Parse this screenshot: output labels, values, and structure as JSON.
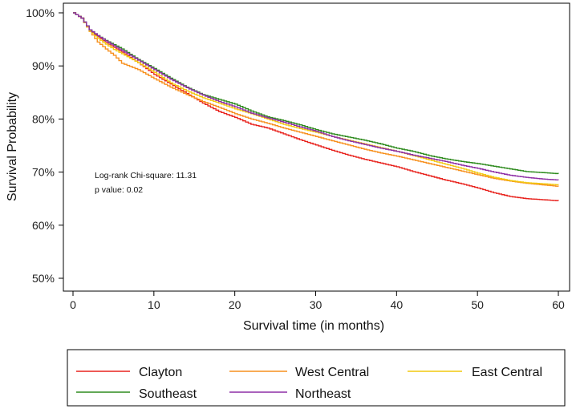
{
  "chart_data": {
    "type": "line",
    "step": true,
    "title": "",
    "xlabel": "Survival time (in months)",
    "ylabel": "Survival Probability",
    "xlim": [
      0,
      60
    ],
    "ylim": [
      0.5,
      1.0
    ],
    "xticks": [
      0,
      10,
      20,
      30,
      40,
      50,
      60
    ],
    "xtick_labels": [
      "0",
      "10",
      "20",
      "30",
      "40",
      "50",
      "60"
    ],
    "yticks": [
      0.5,
      0.6,
      0.7,
      0.8,
      0.9,
      1.0
    ],
    "ytick_labels": [
      "50%",
      "60%",
      "70%",
      "80%",
      "90%",
      "100%"
    ],
    "grid": false,
    "legend_position": "bottom",
    "annotations": [
      "Log-rank Chi-square: 11.31",
      "p value: 0.02"
    ],
    "x": [
      0,
      1,
      2,
      3,
      4,
      5,
      6,
      8,
      10,
      12,
      14,
      16,
      18,
      20,
      22,
      24,
      26,
      28,
      30,
      32,
      34,
      36,
      38,
      40,
      42,
      44,
      46,
      48,
      50,
      52,
      54,
      56,
      58,
      60
    ],
    "series": [
      {
        "name": "Clayton",
        "color": "#e8231e",
        "values": [
          1.0,
          0.99,
          0.966,
          0.955,
          0.944,
          0.935,
          0.926,
          0.906,
          0.884,
          0.866,
          0.848,
          0.83,
          0.814,
          0.803,
          0.79,
          0.783,
          0.772,
          0.761,
          0.751,
          0.741,
          0.732,
          0.724,
          0.717,
          0.71,
          0.701,
          0.693,
          0.685,
          0.678,
          0.67,
          0.661,
          0.654,
          0.65,
          0.648,
          0.646
        ]
      },
      {
        "name": "West Central",
        "color": "#f7901e",
        "values": [
          1.0,
          0.99,
          0.965,
          0.945,
          0.932,
          0.92,
          0.905,
          0.893,
          0.876,
          0.86,
          0.846,
          0.833,
          0.822,
          0.81,
          0.8,
          0.792,
          0.783,
          0.775,
          0.767,
          0.759,
          0.751,
          0.743,
          0.736,
          0.73,
          0.723,
          0.716,
          0.709,
          0.702,
          0.695,
          0.688,
          0.683,
          0.679,
          0.676,
          0.673
        ]
      },
      {
        "name": "East Central",
        "color": "#f2c80f",
        "values": [
          1.0,
          0.99,
          0.966,
          0.952,
          0.941,
          0.931,
          0.923,
          0.906,
          0.888,
          0.868,
          0.853,
          0.84,
          0.83,
          0.819,
          0.81,
          0.8,
          0.79,
          0.782,
          0.775,
          0.767,
          0.76,
          0.753,
          0.746,
          0.739,
          0.731,
          0.723,
          0.715,
          0.707,
          0.698,
          0.69,
          0.684,
          0.68,
          0.678,
          0.676
        ]
      },
      {
        "name": "Southeast",
        "color": "#2e8b1e",
        "values": [
          1.0,
          0.99,
          0.968,
          0.957,
          0.948,
          0.94,
          0.932,
          0.912,
          0.895,
          0.877,
          0.86,
          0.846,
          0.837,
          0.828,
          0.815,
          0.804,
          0.797,
          0.789,
          0.78,
          0.772,
          0.766,
          0.76,
          0.753,
          0.745,
          0.739,
          0.731,
          0.725,
          0.72,
          0.716,
          0.711,
          0.706,
          0.701,
          0.699,
          0.697
        ]
      },
      {
        "name": "Northeast",
        "color": "#8e2fa5",
        "values": [
          1.0,
          0.99,
          0.968,
          0.957,
          0.947,
          0.938,
          0.929,
          0.911,
          0.893,
          0.875,
          0.859,
          0.845,
          0.833,
          0.823,
          0.811,
          0.802,
          0.794,
          0.785,
          0.777,
          0.767,
          0.759,
          0.752,
          0.745,
          0.739,
          0.732,
          0.726,
          0.72,
          0.713,
          0.707,
          0.7,
          0.694,
          0.69,
          0.687,
          0.685
        ]
      }
    ]
  }
}
